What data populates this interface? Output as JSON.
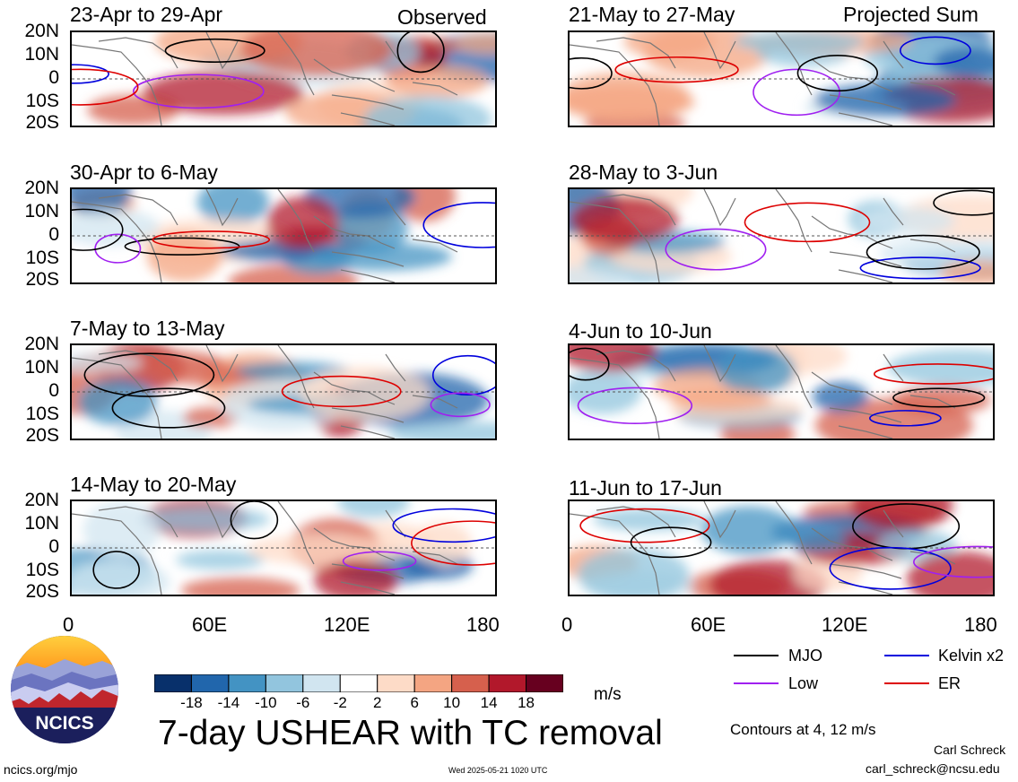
{
  "header": {
    "left_label": "Observed",
    "right_label": "Projected Sum"
  },
  "panels_left": [
    "23-Apr to 29-Apr",
    "30-Apr to 6-May",
    "7-May to 13-May",
    "14-May to 20-May"
  ],
  "panels_right": [
    "21-May to 27-May",
    "28-May to 3-Jun",
    "4-Jun to 10-Jun",
    "11-Jun to 17-Jun"
  ],
  "y_axis": [
    "20N",
    "10N",
    "0",
    "10S",
    "20S"
  ],
  "x_axis": [
    "0",
    "60E",
    "120E",
    "180"
  ],
  "colorbar": {
    "labels": [
      "-18",
      "-14",
      "-10",
      "-6",
      "-2",
      "2",
      "6",
      "10",
      "14",
      "18"
    ],
    "colors": [
      "#08306b",
      "#2166ac",
      "#4393c3",
      "#92c5de",
      "#d1e5f0",
      "#ffffff",
      "#fddbc7",
      "#f4a582",
      "#d6604d",
      "#b2182b",
      "#67001f"
    ],
    "units": "m/s"
  },
  "legend": {
    "items": [
      {
        "label": "MJO",
        "color": "#000000"
      },
      {
        "label": "Kelvin x2",
        "color": "#0000dd"
      },
      {
        "label": "Low",
        "color": "#a020f0"
      },
      {
        "label": "ER",
        "color": "#dd0000"
      }
    ],
    "contours_note": "Contours at 4, 12 m/s"
  },
  "title": "7-day USHEAR with TC removal",
  "logo_text": "NCICS",
  "footer": {
    "site": "ncics.org/mjo",
    "timestamp": "Wed 2025-05-21 1020 UTC",
    "author": "Carl Schreck",
    "email": "carl_schreck@ncsu.edu"
  }
}
